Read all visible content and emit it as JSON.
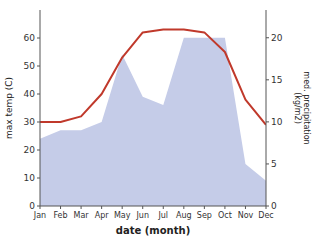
{
  "chart_data": {
    "type": "line",
    "x_label": "date (month)",
    "y_label": "max temp (C)",
    "y2_label": "med. precipitation\n(kg/m2)",
    "categories": [
      "Jan",
      "Feb",
      "Mar",
      "Apr",
      "May",
      "Jun",
      "Jul",
      "Aug",
      "Sep",
      "Oct",
      "Nov",
      "Dec"
    ],
    "series": [
      {
        "type": "area",
        "axis": "y2",
        "color": "#c5cce8",
        "values": [
          8,
          9,
          9,
          10,
          18,
          13,
          12,
          20,
          20,
          20,
          5,
          3
        ]
      },
      {
        "type": "line",
        "color": "#c0392b",
        "values": [
          30,
          30,
          32,
          40,
          53,
          62,
          63,
          63,
          62,
          55,
          38,
          29
        ]
      }
    ],
    "ylim": [
      0,
      70
    ],
    "yticks": [
      0,
      10,
      20,
      30,
      40,
      50,
      60
    ],
    "y2lim": [
      0,
      23.3
    ],
    "y2ticks": [
      0,
      5,
      10,
      15,
      20
    ],
    "grid": false
  }
}
